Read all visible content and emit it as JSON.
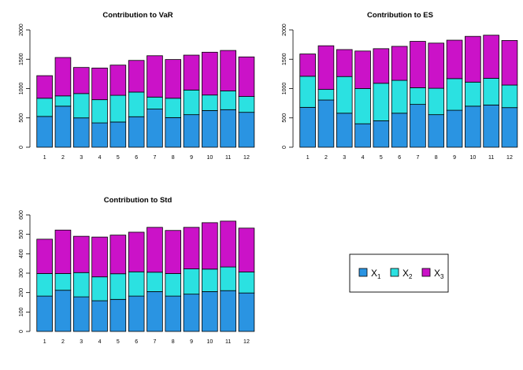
{
  "colors": {
    "X1": "#2A94E2",
    "X2": "#2BE1E1",
    "X3": "#CB12C8",
    "stroke": "#000000"
  },
  "legend": {
    "entries": [
      {
        "base": "X",
        "sub": "1",
        "series": "X1"
      },
      {
        "base": "X",
        "sub": "2",
        "series": "X2"
      },
      {
        "base": "X",
        "sub": "3",
        "series": "X3"
      }
    ]
  },
  "chart_data": [
    {
      "type": "bar",
      "stacked": true,
      "title": "Contribution to VaR",
      "categories": [
        "1",
        "2",
        "3",
        "4",
        "5",
        "6",
        "7",
        "8",
        "9",
        "10",
        "11",
        "12"
      ],
      "ylim": [
        0,
        2000
      ],
      "yticks": [
        "0",
        "500",
        "1000",
        "1500",
        "2000"
      ],
      "series": [
        {
          "name": "X1",
          "values": [
            525,
            700,
            500,
            415,
            430,
            520,
            650,
            505,
            555,
            625,
            640,
            595
          ]
        },
        {
          "name": "X2",
          "values": [
            310,
            175,
            415,
            395,
            455,
            420,
            205,
            330,
            420,
            265,
            320,
            270
          ]
        },
        {
          "name": "X3",
          "values": [
            385,
            655,
            445,
            540,
            515,
            540,
            705,
            660,
            595,
            730,
            690,
            675
          ]
        }
      ]
    },
    {
      "type": "bar",
      "stacked": true,
      "title": "Contribution to ES",
      "categories": [
        "1",
        "2",
        "3",
        "4",
        "5",
        "6",
        "7",
        "8",
        "9",
        "10",
        "11",
        "12"
      ],
      "ylim": [
        0,
        2000
      ],
      "yticks": [
        "0",
        "500",
        "1000",
        "1500",
        "2000"
      ],
      "series": [
        {
          "name": "X1",
          "values": [
            680,
            805,
            580,
            400,
            450,
            580,
            730,
            555,
            630,
            700,
            720,
            675
          ]
        },
        {
          "name": "X2",
          "values": [
            530,
            180,
            625,
            600,
            640,
            560,
            285,
            450,
            540,
            410,
            455,
            385
          ]
        },
        {
          "name": "X3",
          "values": [
            380,
            745,
            460,
            640,
            590,
            580,
            790,
            770,
            655,
            780,
            735,
            760
          ]
        }
      ]
    },
    {
      "type": "bar",
      "stacked": true,
      "title": "Contribution to Std",
      "categories": [
        "1",
        "2",
        "3",
        "4",
        "5",
        "6",
        "7",
        "8",
        "9",
        "10",
        "11",
        "12"
      ],
      "ylim": [
        0,
        600
      ],
      "yticks": [
        "0",
        "100",
        "200",
        "300",
        "400",
        "500",
        "600"
      ],
      "series": [
        {
          "name": "X1",
          "values": [
            182,
            212,
            178,
            158,
            165,
            182,
            205,
            182,
            192,
            205,
            210,
            198
          ]
        },
        {
          "name": "X2",
          "values": [
            116,
            86,
            125,
            123,
            132,
            125,
            100,
            116,
            130,
            116,
            122,
            108
          ]
        },
        {
          "name": "X3",
          "values": [
            177,
            224,
            187,
            205,
            199,
            204,
            231,
            222,
            214,
            239,
            236,
            226
          ]
        }
      ]
    }
  ]
}
